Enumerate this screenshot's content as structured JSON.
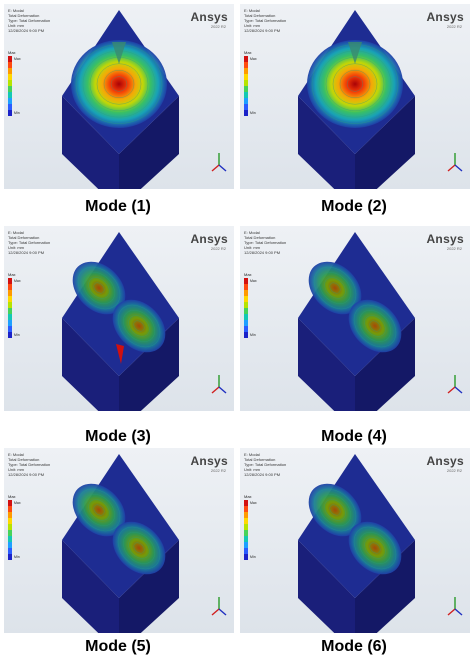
{
  "brand": "Ansys",
  "brand_version": "2022 R2",
  "header_lines": [
    "E: Modal",
    "Total Deformation",
    "Type: Total Deformation",
    "Unit: mm",
    "12/28/2024 9:00 PM"
  ],
  "legend": {
    "unit": "Max",
    "values": [
      "Max",
      "",
      "",
      "",
      "",
      "",
      "",
      "",
      "",
      "Min"
    ],
    "colors": [
      "#d21010",
      "#ff4a10",
      "#ff9a00",
      "#ffd800",
      "#b6e400",
      "#46d35a",
      "#14c8b4",
      "#1ea0ff",
      "#2a5cff",
      "#1b22c8"
    ]
  },
  "modes": [
    {
      "caption": "Mode (1)",
      "pattern": "center"
    },
    {
      "caption": "Mode (2)",
      "pattern": "center"
    },
    {
      "caption": "Mode (3)",
      "pattern": "split-a"
    },
    {
      "caption": "Mode (4)",
      "pattern": "split-b"
    },
    {
      "caption": "Mode (5)",
      "pattern": "split-b"
    },
    {
      "caption": "Mode (6)",
      "pattern": "split-b"
    }
  ]
}
